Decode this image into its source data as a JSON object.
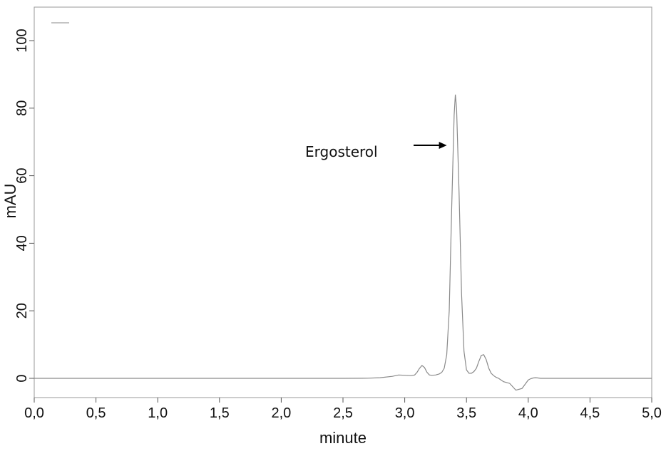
{
  "chart_data": {
    "type": "line",
    "title": "",
    "xlabel": "minute",
    "ylabel": "mAU",
    "xlim": [
      0.0,
      5.0
    ],
    "ylim": [
      -4,
      110
    ],
    "x_ticks": [
      {
        "value": 0.0,
        "label": "0,0"
      },
      {
        "value": 0.5,
        "label": "0,5"
      },
      {
        "value": 1.0,
        "label": "1,0"
      },
      {
        "value": 1.5,
        "label": "1,5"
      },
      {
        "value": 2.0,
        "label": "2,0"
      },
      {
        "value": 2.5,
        "label": "2,5"
      },
      {
        "value": 3.0,
        "label": "3,0"
      },
      {
        "value": 3.5,
        "label": "3,5"
      },
      {
        "value": 4.0,
        "label": "4,0"
      },
      {
        "value": 4.5,
        "label": "4,5"
      },
      {
        "value": 5.0,
        "label": "5,0"
      }
    ],
    "y_ticks": [
      {
        "value": 0,
        "label": "0"
      },
      {
        "value": 20,
        "label": "20"
      },
      {
        "value": 40,
        "label": "40"
      },
      {
        "value": 60,
        "label": "60"
      },
      {
        "value": 80,
        "label": "80"
      },
      {
        "value": 100,
        "label": "100"
      }
    ],
    "grid": false,
    "legend": {
      "position": "top-left",
      "entries": [
        {
          "name": "",
          "color": "#8a8a8a"
        }
      ]
    },
    "series": [
      {
        "name": "",
        "color": "#8a8a8a",
        "x": [
          0.0,
          0.5,
          1.0,
          1.5,
          2.0,
          2.5,
          2.7,
          2.8,
          2.9,
          2.95,
          3.0,
          3.05,
          3.08,
          3.1,
          3.12,
          3.14,
          3.16,
          3.18,
          3.2,
          3.22,
          3.25,
          3.28,
          3.3,
          3.32,
          3.34,
          3.36,
          3.38,
          3.4,
          3.41,
          3.42,
          3.44,
          3.46,
          3.48,
          3.5,
          3.52,
          3.54,
          3.56,
          3.58,
          3.6,
          3.62,
          3.64,
          3.66,
          3.68,
          3.7,
          3.72,
          3.74,
          3.76,
          3.78,
          3.8,
          3.85,
          3.9,
          3.95,
          3.98,
          4.0,
          4.02,
          4.04,
          4.06,
          4.08,
          4.1,
          4.15,
          4.2,
          4.25,
          4.3,
          4.5,
          5.0
        ],
        "y": [
          0,
          0,
          0,
          0,
          0,
          0,
          0.05,
          0.2,
          0.6,
          1.0,
          0.9,
          0.8,
          1.0,
          1.8,
          3.0,
          3.8,
          3.2,
          1.8,
          1.0,
          0.9,
          1.0,
          1.3,
          1.8,
          3.0,
          7.0,
          20.0,
          50.0,
          78.0,
          84.0,
          80.0,
          55.0,
          25.0,
          8.0,
          2.5,
          1.5,
          1.5,
          2.0,
          3.0,
          5.0,
          6.8,
          7.0,
          5.5,
          3.0,
          1.5,
          0.8,
          0.3,
          0.0,
          -0.5,
          -1.0,
          -1.5,
          -3.5,
          -3.0,
          -1.5,
          -0.5,
          -0.1,
          0.1,
          0.2,
          0.1,
          0.0,
          0.0,
          0.0,
          0.0,
          0.0,
          0.0,
          0.0
        ]
      }
    ],
    "annotations": [
      {
        "text": "Ergosterol",
        "arrow_to": {
          "x": 3.41,
          "y": 69
        }
      }
    ]
  }
}
